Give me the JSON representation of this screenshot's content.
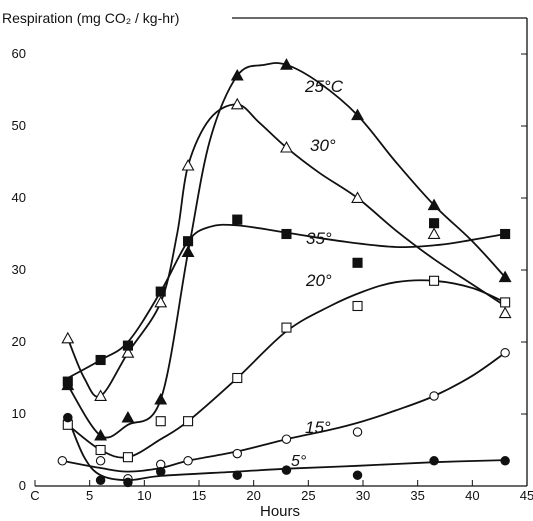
{
  "chart_data": {
    "type": "line",
    "ylabel": "Respiration (mg CO₂ / kg-hr)",
    "xlabel": "Hours",
    "xlim": [
      0,
      45
    ],
    "ylim": [
      0,
      65
    ],
    "x_ticks": [
      0,
      5,
      10,
      15,
      20,
      25,
      30,
      35,
      40,
      45
    ],
    "x_tick_labels": [
      "C",
      "5",
      "10",
      "15",
      "20",
      "25",
      "30",
      "35",
      "40",
      "45"
    ],
    "y_ticks": [
      0,
      10,
      20,
      30,
      40,
      50,
      60
    ],
    "y_tick_labels": [
      "0",
      "10",
      "20",
      "30",
      "40",
      "50",
      "60"
    ],
    "grid": false,
    "series": [
      {
        "name": "25°C",
        "marker": "filled-triangle",
        "points": [
          [
            3,
            14
          ],
          [
            6,
            7
          ],
          [
            8.5,
            9.5
          ],
          [
            11.5,
            12
          ],
          [
            14,
            32.5
          ],
          [
            18.5,
            57
          ],
          [
            23,
            58.5
          ],
          [
            29.5,
            51.5
          ],
          [
            36.5,
            39
          ],
          [
            43,
            29
          ]
        ],
        "curve": [
          [
            3,
            14
          ],
          [
            6,
            7
          ],
          [
            8.5,
            8.5
          ],
          [
            11.5,
            12
          ],
          [
            14,
            32.5
          ],
          [
            16,
            48
          ],
          [
            18.5,
            57
          ],
          [
            21,
            58.5
          ],
          [
            23,
            58.5
          ],
          [
            26,
            56
          ],
          [
            29.5,
            51.5
          ],
          [
            33,
            45
          ],
          [
            36.5,
            39
          ],
          [
            40,
            34
          ],
          [
            43,
            29
          ]
        ]
      },
      {
        "name": "30°",
        "marker": "open-triangle",
        "points": [
          [
            3,
            20.5
          ],
          [
            6,
            12.5
          ],
          [
            8.5,
            18.5
          ],
          [
            11.5,
            25.5
          ],
          [
            14,
            44.5
          ],
          [
            18.5,
            53
          ],
          [
            23,
            47
          ],
          [
            29.5,
            40
          ],
          [
            36.5,
            35
          ],
          [
            43,
            24
          ]
        ],
        "curve": [
          [
            3,
            20.5
          ],
          [
            4.5,
            15
          ],
          [
            6,
            12.5
          ],
          [
            8.5,
            18.5
          ],
          [
            11.5,
            25.5
          ],
          [
            13,
            35
          ],
          [
            14,
            44.5
          ],
          [
            16,
            51
          ],
          [
            18.5,
            53
          ],
          [
            20.5,
            50.5
          ],
          [
            23,
            47
          ],
          [
            26,
            43.5
          ],
          [
            29.5,
            40
          ],
          [
            33,
            35.5
          ],
          [
            36.5,
            31.5
          ],
          [
            40,
            28
          ],
          [
            43,
            25
          ]
        ]
      },
      {
        "name": "35°",
        "marker": "filled-square",
        "points": [
          [
            3,
            14.5
          ],
          [
            6,
            17.5
          ],
          [
            8.5,
            19.5
          ],
          [
            11.5,
            27
          ],
          [
            14,
            34
          ],
          [
            18.5,
            37
          ],
          [
            23,
            35
          ],
          [
            29.5,
            31
          ],
          [
            36.5,
            36.5
          ],
          [
            43,
            35
          ]
        ],
        "curve": [
          [
            3,
            15
          ],
          [
            6,
            17.5
          ],
          [
            8.5,
            20
          ],
          [
            11.5,
            27
          ],
          [
            14,
            34
          ],
          [
            16,
            36
          ],
          [
            18.5,
            36.2
          ],
          [
            23,
            35.2
          ],
          [
            28,
            34
          ],
          [
            33,
            33.2
          ],
          [
            37,
            33.5
          ],
          [
            40,
            34.2
          ],
          [
            43,
            35
          ]
        ]
      },
      {
        "name": "20°",
        "marker": "open-square",
        "points": [
          [
            3,
            8.5
          ],
          [
            6,
            5
          ],
          [
            8.5,
            4
          ],
          [
            11.5,
            9
          ],
          [
            14,
            9
          ],
          [
            18.5,
            15
          ],
          [
            23,
            22
          ],
          [
            29.5,
            25
          ],
          [
            36.5,
            28.5
          ],
          [
            43,
            25.5
          ]
        ],
        "curve": [
          [
            3,
            8.5
          ],
          [
            6,
            5
          ],
          [
            8.5,
            4
          ],
          [
            11.5,
            6.5
          ],
          [
            14,
            9
          ],
          [
            18.5,
            15
          ],
          [
            23,
            21.5
          ],
          [
            27,
            25
          ],
          [
            30,
            27
          ],
          [
            33,
            28.3
          ],
          [
            36.5,
            28.5
          ],
          [
            40,
            27.5
          ],
          [
            43,
            25.5
          ]
        ]
      },
      {
        "name": "15°",
        "marker": "open-circle",
        "points": [
          [
            2.5,
            3.5
          ],
          [
            6,
            3.5
          ],
          [
            8.5,
            1
          ],
          [
            11.5,
            3
          ],
          [
            14,
            3.5
          ],
          [
            18.5,
            4.5
          ],
          [
            23,
            6.5
          ],
          [
            29.5,
            7.5
          ],
          [
            36.5,
            12.5
          ],
          [
            43,
            18.5
          ]
        ],
        "curve": [
          [
            2.5,
            3.5
          ],
          [
            6,
            2.5
          ],
          [
            8.5,
            2
          ],
          [
            11.5,
            2.5
          ],
          [
            14,
            3.5
          ],
          [
            18.5,
            4.8
          ],
          [
            23,
            6.5
          ],
          [
            27,
            7.8
          ],
          [
            30,
            9
          ],
          [
            33,
            10.5
          ],
          [
            36.5,
            12.5
          ],
          [
            40,
            15.3
          ],
          [
            43,
            18.5
          ]
        ]
      },
      {
        "name": "5°",
        "marker": "filled-circle",
        "points": [
          [
            3,
            9.5
          ],
          [
            6,
            0.8
          ],
          [
            8.5,
            0.5
          ],
          [
            11.5,
            2
          ],
          [
            18.5,
            1.5
          ],
          [
            23,
            2.2
          ],
          [
            29.5,
            1.5
          ],
          [
            36.5,
            3.5
          ],
          [
            43,
            3.5
          ]
        ],
        "curve": [
          [
            3,
            9.5
          ],
          [
            4.5,
            4
          ],
          [
            6,
            1.5
          ],
          [
            8.5,
            0.8
          ],
          [
            11.5,
            1.4
          ],
          [
            18.5,
            2
          ],
          [
            23,
            2.4
          ],
          [
            29.5,
            2.8
          ],
          [
            36.5,
            3.3
          ],
          [
            43,
            3.6
          ]
        ]
      }
    ]
  }
}
